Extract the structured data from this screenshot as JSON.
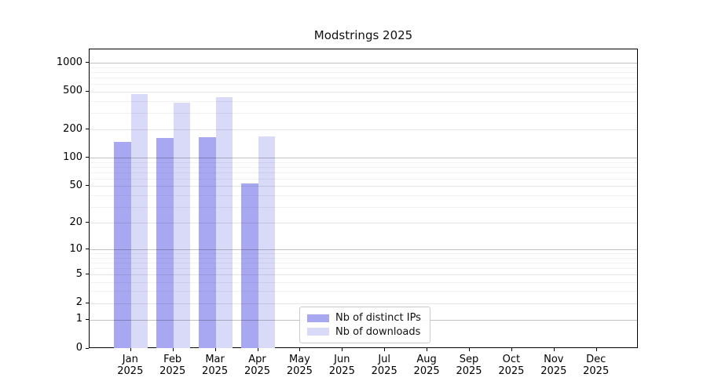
{
  "chart_data": {
    "type": "bar",
    "title": "Modstrings 2025",
    "categories": [
      "Jan",
      "Feb",
      "Mar",
      "Apr",
      "May",
      "Jun",
      "Jul",
      "Aug",
      "Sep",
      "Oct",
      "Nov",
      "Dec"
    ],
    "category_second_line": "2025",
    "series": [
      {
        "name": "Nb of distinct IPs",
        "color": "#a8a8f2",
        "values": [
          147,
          162,
          166,
          53,
          0,
          0,
          0,
          0,
          0,
          0,
          0,
          0
        ]
      },
      {
        "name": "Nb of downloads",
        "color": "#d9d9f8",
        "values": [
          470,
          383,
          437,
          168,
          0,
          0,
          0,
          0,
          0,
          0,
          0,
          0
        ]
      }
    ],
    "y_scale": "log(1+y)",
    "y_ticks": [
      0,
      1,
      2,
      5,
      10,
      20,
      50,
      100,
      200,
      500,
      1000
    ],
    "ylim": [
      0,
      1400
    ],
    "grid": "horizontal gridlines drawn above bars",
    "legend_position": "inside plot, lower center",
    "colors": {
      "axis": "#000000",
      "background": "#ffffff"
    }
  }
}
